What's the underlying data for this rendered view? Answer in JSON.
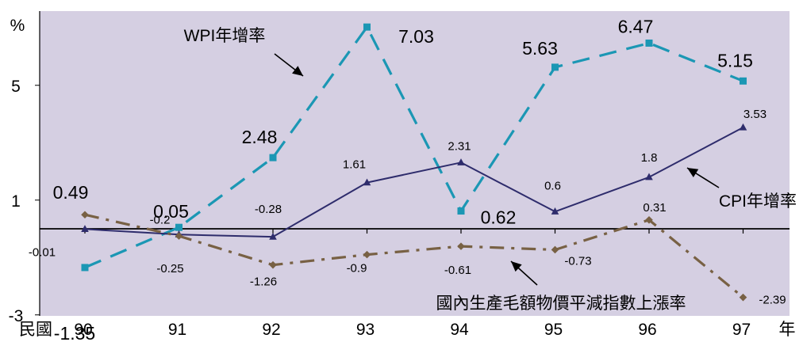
{
  "chart_data": {
    "type": "line",
    "y_unit": "%",
    "x_axis_left_label": "民國",
    "x_axis_unit": "年",
    "categories": [
      "90",
      "91",
      "92",
      "93",
      "94",
      "95",
      "96",
      "97"
    ],
    "y_ticks": [
      5,
      1,
      -3
    ],
    "ylim": [
      -3.45,
      7.65
    ],
    "grid": false,
    "colors": {
      "plot_background": "#d5cfe2",
      "wpi": "#1b97b4",
      "cpi": "#2e2c6c",
      "gdp_deflator": "#786144"
    },
    "series": [
      {
        "id": "wpi",
        "name": "WPI年增率",
        "values": [
          -1.35,
          0.05,
          2.48,
          7.03,
          0.62,
          5.63,
          6.47,
          5.15
        ],
        "labels": [
          "-1.35",
          "0.05",
          "2.48",
          "7.03",
          "0.62",
          "5.63",
          "6.47",
          "5.15"
        ]
      },
      {
        "id": "cpi",
        "name": "CPI年增率",
        "values": [
          -0.01,
          -0.2,
          -0.28,
          1.61,
          2.31,
          0.6,
          1.8,
          3.53
        ],
        "labels": [
          "-0.01",
          "-0.2",
          "-0.28",
          "1.61",
          "2.31",
          "0.6",
          "1.8",
          "3.53"
        ]
      },
      {
        "id": "gdp_deflator",
        "name": "國內生產毛額物價平減指數上漲率",
        "values": [
          0.49,
          -0.25,
          -1.26,
          -0.9,
          -0.61,
          -0.73,
          0.31,
          -2.39
        ],
        "labels": [
          "0.49",
          "-0.25",
          "-1.26",
          "-0.9",
          "-0.61",
          "-0.73",
          "0.31",
          "-2.39"
        ]
      }
    ]
  }
}
